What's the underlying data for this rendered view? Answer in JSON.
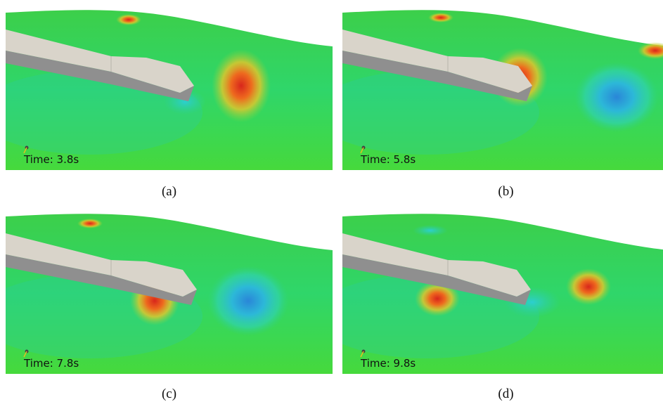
{
  "panels": [
    {
      "time_label": "Time: 3.8s",
      "caption": "(a)"
    },
    {
      "time_label": "Time: 5.8s",
      "caption": "(b)"
    },
    {
      "time_label": "Time: 7.8s",
      "caption": "(c)"
    },
    {
      "time_label": "Time: 9.8s",
      "caption": "(d)"
    }
  ]
}
